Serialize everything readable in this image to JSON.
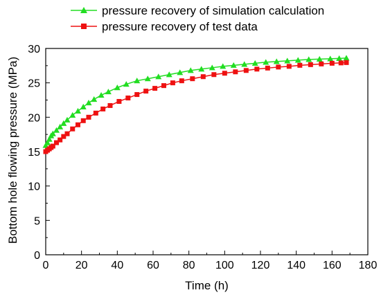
{
  "chart_data": {
    "type": "line",
    "xlabel": "Time (h)",
    "ylabel": "Bottom hole flowing pressure (MPa)",
    "xlim": [
      0,
      180
    ],
    "ylim": [
      0,
      30
    ],
    "xticks": [
      0,
      20,
      40,
      60,
      80,
      100,
      120,
      140,
      160,
      180
    ],
    "yticks": [
      0,
      5,
      10,
      15,
      20,
      25,
      30
    ],
    "grid": false,
    "legend_position": "top",
    "series": [
      {
        "name": "pressure recovery of simulation calculation",
        "color": "#22dd22",
        "marker": "triangle",
        "x": [
          0,
          1,
          2,
          3,
          4,
          6,
          8,
          10,
          12,
          15,
          18,
          21,
          24,
          27,
          31,
          35,
          40,
          45,
          51,
          57,
          63,
          69,
          75,
          81,
          87,
          93,
          99,
          105,
          111,
          117,
          123,
          129,
          135,
          141,
          147,
          153,
          159,
          164,
          168
        ],
        "y": [
          15.9,
          16.3,
          16.8,
          17.3,
          17.6,
          18.1,
          18.6,
          19.1,
          19.6,
          20.3,
          20.9,
          21.5,
          22.1,
          22.6,
          23.2,
          23.7,
          24.3,
          24.8,
          25.3,
          25.6,
          25.9,
          26.2,
          26.5,
          26.8,
          27.0,
          27.2,
          27.4,
          27.55,
          27.7,
          27.85,
          28.0,
          28.1,
          28.2,
          28.3,
          28.4,
          28.45,
          28.5,
          28.55,
          28.6
        ]
      },
      {
        "name": "pressure recovery of test data",
        "color": "#ee1111",
        "marker": "square",
        "x": [
          0,
          1,
          2,
          3,
          4,
          6,
          8,
          10,
          12,
          15,
          18,
          21,
          24,
          28,
          32,
          36,
          41,
          46,
          51,
          56,
          61,
          66,
          71,
          76,
          82,
          88,
          94,
          100,
          106,
          112,
          118,
          124,
          130,
          136,
          142,
          148,
          154,
          160,
          165,
          168
        ],
        "y": [
          15.0,
          15.2,
          15.4,
          15.6,
          15.8,
          16.3,
          16.7,
          17.2,
          17.6,
          18.3,
          18.9,
          19.5,
          20.0,
          20.6,
          21.2,
          21.7,
          22.3,
          22.8,
          23.3,
          23.8,
          24.2,
          24.6,
          25.0,
          25.3,
          25.6,
          25.9,
          26.2,
          26.4,
          26.6,
          26.8,
          27.0,
          27.15,
          27.3,
          27.4,
          27.55,
          27.65,
          27.75,
          27.85,
          27.9,
          27.95
        ]
      }
    ]
  }
}
